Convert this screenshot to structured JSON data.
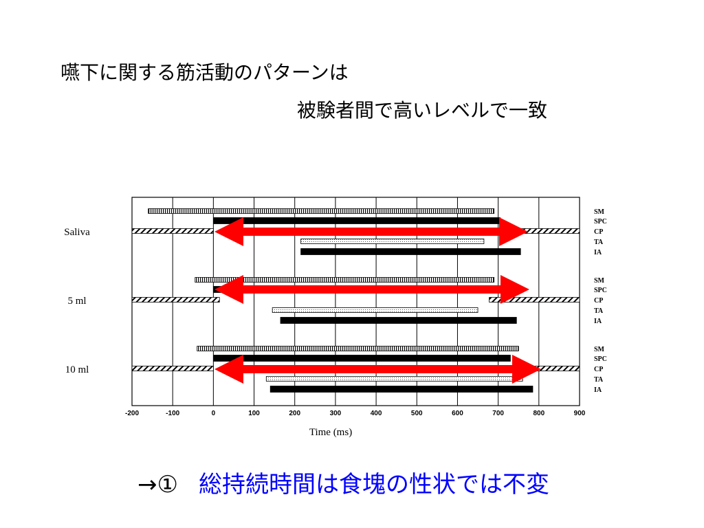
{
  "slide": {
    "title_lines": [
      "嚥下に関する筋活動のパターンは",
      "被験者間で高いレベルで一致"
    ],
    "conclusion_prefix": "→①",
    "conclusion": "総持続時間は食塊の性状では不変"
  },
  "chart_data": {
    "type": "timeline",
    "xlabel": "Time (ms)",
    "xlim": [
      -200,
      900
    ],
    "xticks": [
      -200,
      -100,
      0,
      100,
      200,
      300,
      400,
      500,
      600,
      700,
      800,
      900
    ],
    "grid": true,
    "rows": [
      "SM",
      "SPC",
      "CP",
      "TA",
      "IA"
    ],
    "row_fills": [
      "vhatch",
      "solid",
      "dhatch",
      "dots",
      "solid"
    ],
    "groups": [
      {
        "name": "Saliva",
        "segments": [
          [
            [
              -160,
              690
            ]
          ],
          [
            [
              0,
              705
            ]
          ],
          [
            [
              -200,
              0
            ],
            [
              730,
              900
            ]
          ],
          [
            [
              215,
              665
            ]
          ],
          [
            [
              215,
              755
            ]
          ]
        ]
      },
      {
        "name": "5 ml",
        "segments": [
          [
            [
              -45,
              690
            ]
          ],
          [
            [
              0,
              705
            ]
          ],
          [
            [
              -200,
              15
            ],
            [
              678,
              900
            ]
          ],
          [
            [
              145,
              650
            ]
          ],
          [
            [
              165,
              745
            ]
          ]
        ]
      },
      {
        "name": "10 ml",
        "segments": [
          [
            [
              -40,
              750
            ]
          ],
          [
            [
              0,
              730
            ]
          ],
          [
            [
              -200,
              0
            ],
            [
              790,
              900
            ]
          ],
          [
            [
              130,
              760
            ]
          ],
          [
            [
              140,
              785
            ]
          ]
        ]
      }
    ]
  }
}
